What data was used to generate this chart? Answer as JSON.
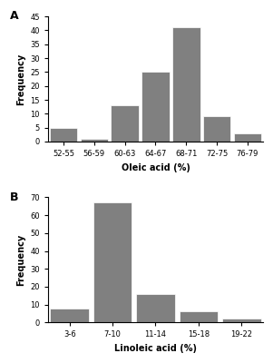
{
  "chart_A": {
    "label": "A",
    "categories": [
      "52-55",
      "56-59",
      "60-63",
      "64-67",
      "68-71",
      "72-75",
      "76-79"
    ],
    "values": [
      5,
      1,
      13,
      25,
      41,
      9,
      3
    ],
    "xlabel": "Oleic acid (%)",
    "ylabel": "Frequency",
    "ylim": [
      0,
      45
    ],
    "yticks": [
      0,
      5,
      10,
      15,
      20,
      25,
      30,
      35,
      40,
      45
    ]
  },
  "chart_B": {
    "label": "B",
    "categories": [
      "3-6",
      "7-10",
      "11-14",
      "15-18",
      "19-22"
    ],
    "values": [
      8,
      67,
      16,
      6,
      2
    ],
    "xlabel": "Linoleic acid (%)",
    "ylabel": "Frequency",
    "ylim": [
      0,
      70
    ],
    "yticks": [
      0,
      10,
      20,
      30,
      40,
      50,
      60,
      70
    ]
  },
  "bar_color": "#808080",
  "bar_edgecolor": "#ffffff",
  "background_color": "#ffffff",
  "label_fontsize": 7,
  "tick_fontsize": 6,
  "axis_label_fontsize": 7,
  "panel_label_fontsize": 9
}
